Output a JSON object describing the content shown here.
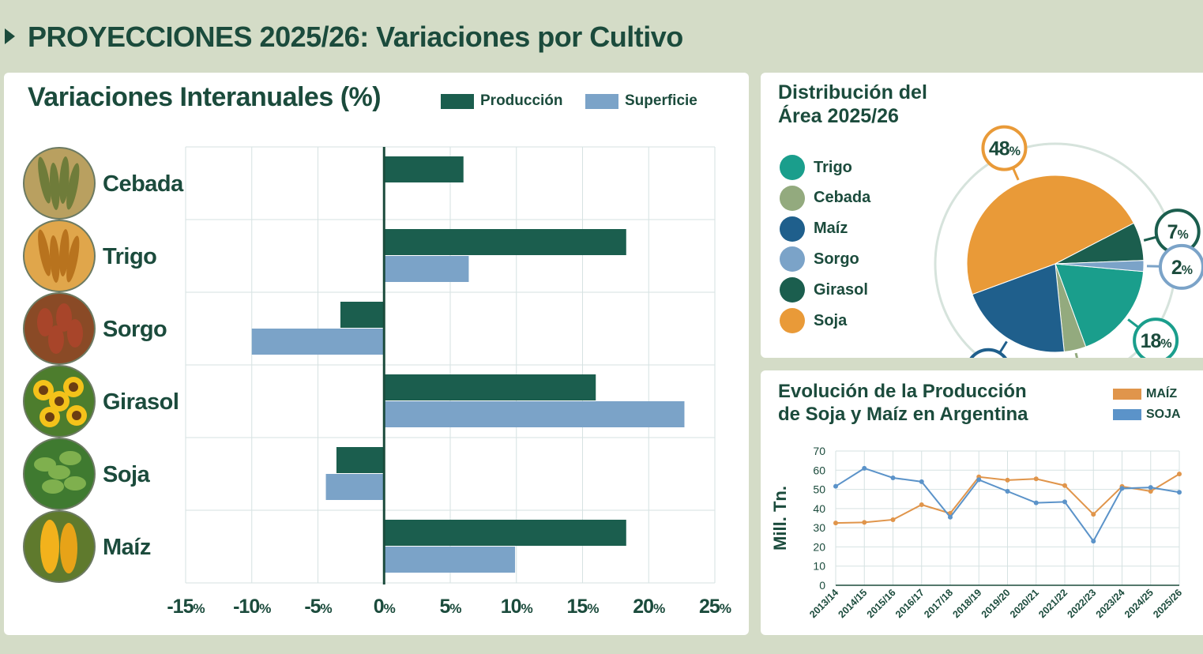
{
  "header": {
    "title": "PROYECCIONES 2025/26: Variaciones por Cultivo"
  },
  "colors": {
    "produccion": "#1b5e4e",
    "superficie": "#7ba3c8",
    "text": "#1b4b3c",
    "bg": "#d4dcc7"
  },
  "bar_panel": {
    "title": "Variaciones Interanuales (%)",
    "legend_produccion": "Producción",
    "legend_superficie": "Superficie"
  },
  "pie_panel": {
    "title": "Distribución del Área 2025/26",
    "legend": [
      {
        "label": "Trigo",
        "color": "#1a9e8c"
      },
      {
        "label": "Cebada",
        "color": "#93aa7e"
      },
      {
        "label": "Maíz",
        "color": "#1f5f8c"
      },
      {
        "label": "Sorgo",
        "color": "#7ba3c8"
      },
      {
        "label": "Girasol",
        "color": "#1b5e4e"
      },
      {
        "label": "Soja",
        "color": "#e99a38"
      }
    ]
  },
  "line_panel": {
    "title": "Evolución de la Producción de Soja y Maíz en Argentina",
    "legend_maiz": "MAÍZ",
    "legend_soja": "SOJA"
  },
  "chart_data": [
    {
      "type": "bar",
      "orientation": "horizontal",
      "title": "Variaciones Interanuales (%)",
      "categories": [
        "Cebada",
        "Trigo",
        "Sorgo",
        "Girasol",
        "Soja",
        "Maíz"
      ],
      "series": [
        {
          "name": "Producción",
          "values": [
            6,
            18.3,
            -3.3,
            16,
            -3.6,
            18.3
          ]
        },
        {
          "name": "Superficie",
          "values": [
            null,
            6.4,
            -10,
            22.7,
            -4.4,
            9.9
          ]
        }
      ],
      "xlim": [
        -15,
        25
      ],
      "xticks": [
        -15,
        -10,
        -5,
        0,
        5,
        10,
        15,
        20,
        25
      ],
      "tick_suffix": "%",
      "grid": true
    },
    {
      "type": "pie",
      "title": "Distribución del Área 2025/26",
      "slices": [
        {
          "label": "Trigo",
          "value": 18
        },
        {
          "label": "Cebada",
          "value": 4
        },
        {
          "label": "Maíz",
          "value": 21
        },
        {
          "label": "Soja",
          "value": 48
        },
        {
          "label": "Girasol",
          "value": 7
        },
        {
          "label": "Sorgo",
          "value": 2
        }
      ],
      "value_suffix": "%"
    },
    {
      "type": "line",
      "title": "Evolución de la Producción de Soja y Maíz en Argentina",
      "ylabel": "Mill. Tn.",
      "x": [
        "2013/14",
        "2014/15",
        "2015/16",
        "2016/17",
        "2017/18",
        "2018/19",
        "2019/20",
        "2020/21",
        "2021/22",
        "2022/23",
        "2023/24",
        "2024/25",
        "2025/26"
      ],
      "series": [
        {
          "name": "MAÍZ",
          "color": "#e0954b",
          "values": [
            32.5,
            32.8,
            34.2,
            42,
            37.5,
            56.5,
            54.8,
            55.5,
            52,
            37,
            51.5,
            49,
            58
          ]
        },
        {
          "name": "SOJA",
          "color": "#5b93c9",
          "values": [
            51.6,
            61,
            56,
            54,
            35.5,
            55,
            49,
            43,
            43.5,
            23,
            50.5,
            51,
            48.5
          ]
        }
      ],
      "ylim": [
        0,
        70
      ],
      "yticks": [
        0,
        10,
        20,
        30,
        40,
        50,
        60,
        70
      ],
      "grid": true
    }
  ]
}
